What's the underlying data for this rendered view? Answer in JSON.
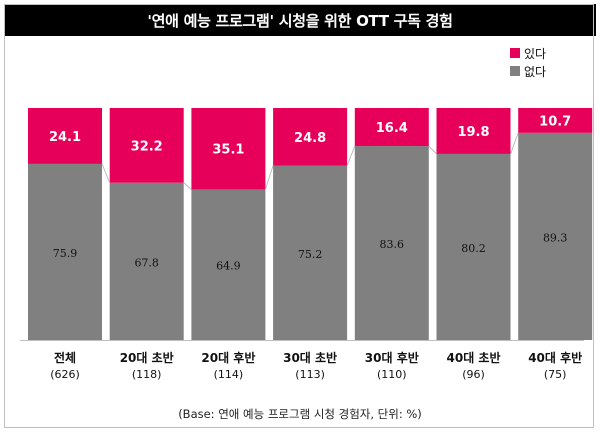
{
  "chart_data": {
    "type": "bar",
    "stacked": true,
    "percent_stacked": true,
    "title": "'연애 예능 프로그램' 시청을 위한 OTT 구독 경험",
    "categories": [
      "전체",
      "20대 초반",
      "20대 후반",
      "30대 초반",
      "30대 후반",
      "40대 초반",
      "40대 후반"
    ],
    "sample_sizes": [
      "(626)",
      "(118)",
      "(114)",
      "(113)",
      "(110)",
      "(96)",
      "(75)"
    ],
    "series": [
      {
        "name": "있다",
        "values": [
          24.1,
          32.2,
          35.1,
          24.8,
          16.4,
          19.8,
          10.7
        ],
        "color": "#e6005a"
      },
      {
        "name": "없다",
        "values": [
          75.9,
          67.8,
          64.9,
          75.2,
          83.6,
          80.2,
          89.3
        ],
        "color": "#808080"
      }
    ],
    "ylim": [
      0,
      100
    ],
    "legend_position": "top-right",
    "connector_lines": true,
    "footnote": "(Base: 연애 예능 프로그램 시청 경험자, 단위: %)"
  }
}
